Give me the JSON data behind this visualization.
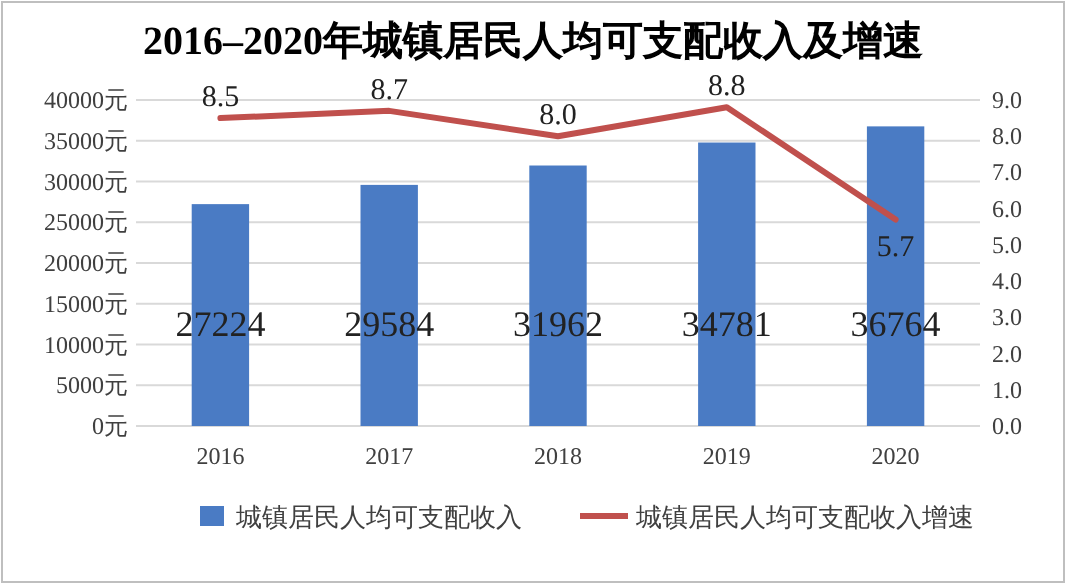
{
  "chart_data": {
    "type": "bar",
    "title": "2016–2020年城镇居民人均可支配收入及增速",
    "categories": [
      "2016",
      "2017",
      "2018",
      "2019",
      "2020"
    ],
    "series": [
      {
        "name": "城镇居民人均可支配收入",
        "color": "#4a7bc4",
        "values": [
          27224,
          29584,
          31962,
          34781,
          36764
        ]
      },
      {
        "name": "城镇居民人均可支配收入增速",
        "type": "line",
        "axis": "y2",
        "color": "#c0504d",
        "values": [
          8.5,
          8.7,
          8.0,
          8.8,
          5.7
        ],
        "value_labels": [
          "8.5",
          "8.7",
          "8.0",
          "8.8",
          "5.7"
        ]
      }
    ],
    "ylim": [
      0,
      40000
    ],
    "yticks": [
      {
        "value": 0,
        "label": "0元"
      },
      {
        "value": 5000,
        "label": "5000元"
      },
      {
        "value": 10000,
        "label": "10000元"
      },
      {
        "value": 15000,
        "label": "15000元"
      },
      {
        "value": 20000,
        "label": "20000元"
      },
      {
        "value": 25000,
        "label": "25000元"
      },
      {
        "value": 30000,
        "label": "30000元"
      },
      {
        "value": 35000,
        "label": "35000元"
      },
      {
        "value": 40000,
        "label": "40000元"
      }
    ],
    "y2lim": [
      0,
      9
    ],
    "y2ticks": [
      {
        "value": 0,
        "label": "0.0"
      },
      {
        "value": 1,
        "label": "1.0"
      },
      {
        "value": 2,
        "label": "2.0"
      },
      {
        "value": 3,
        "label": "3.0"
      },
      {
        "value": 4,
        "label": "4.0"
      },
      {
        "value": 5,
        "label": "5.0"
      },
      {
        "value": 6,
        "label": "6.0"
      },
      {
        "value": 7,
        "label": "7.0"
      },
      {
        "value": 8,
        "label": "8.0"
      },
      {
        "value": 9,
        "label": "9.0"
      }
    ],
    "grid": "y",
    "legend": "bottom",
    "data_labels": true,
    "marker": "none",
    "line_style": "solid"
  }
}
